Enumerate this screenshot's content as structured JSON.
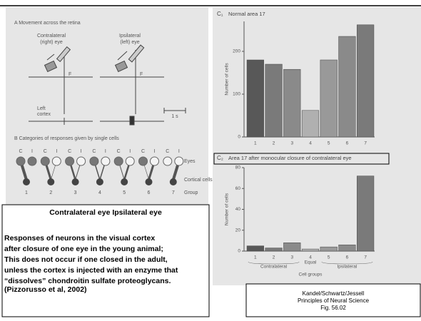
{
  "slide": {
    "panel_a": {
      "title": "A  Movement across the retina",
      "contra": [
        "Contralateral",
        "(right) eye"
      ],
      "ipsi": [
        "Ipsilateral",
        "(left) eye"
      ],
      "f": "F",
      "cortex": [
        "Left",
        "cortex"
      ],
      "scale": "1 s"
    },
    "panel_b": {
      "title": "B  Categories of responses given by single cells",
      "eye_labels": [
        "C",
        "I"
      ],
      "groups": [
        "1",
        "2",
        "3",
        "4",
        "5",
        "6",
        "7"
      ],
      "row_labels": [
        "Eyes",
        "Cortical cells",
        "Group"
      ]
    },
    "caption": {
      "heading": "Contralateral eye   Ipsilateral eye",
      "lines": [
        "Responses of neurons in the visual cortex",
        "after closure of one eye in the young animal;",
        "This does not occur if one closed in the adult,",
        "unless the cortex is injected with an enzyme that",
        "“dissolves” chondroitin sulfate proteoglycans."
      ],
      "citation": "(Pizzorusso et al, 2002)"
    },
    "credit": [
      "Kandel/Schwartz/Jessell",
      "Principles of Neural Science",
      "Fig. 56.02"
    ]
  },
  "chart_data": [
    {
      "type": "bar",
      "label": "C₁",
      "title": "Normal area 17",
      "y_label": "Number of cells",
      "categories": [
        "1",
        "2",
        "3",
        "4",
        "5",
        "6",
        "7"
      ],
      "values": [
        180,
        170,
        158,
        62,
        180,
        235,
        262
      ],
      "colors": [
        "#585858",
        "#7a7a7a",
        "#8a8a8a",
        "#b0b0b0",
        "#999999",
        "#8a8a8a",
        "#7a7a7a"
      ],
      "ylim": [
        0,
        270
      ],
      "yticks": [
        0,
        100,
        200
      ]
    },
    {
      "type": "bar",
      "label": "C₂",
      "title": "Area 17 after monocular closure of contralateral eye",
      "y_label": "Number of cells",
      "x_label": "Cell groups",
      "group_labels": [
        "Contralateral",
        "Equal",
        "Ipsilateral"
      ],
      "categories": [
        "1",
        "2",
        "3",
        "4",
        "5",
        "6",
        "7"
      ],
      "values": [
        5,
        3,
        8,
        2,
        4,
        6,
        72
      ],
      "colors": [
        "#585858",
        "#7a7a7a",
        "#8a8a8a",
        "#b0b0b0",
        "#999999",
        "#8a8a8a",
        "#7a7a7a"
      ],
      "ylim": [
        0,
        80
      ],
      "yticks": [
        0,
        20,
        40,
        60,
        80
      ]
    }
  ]
}
